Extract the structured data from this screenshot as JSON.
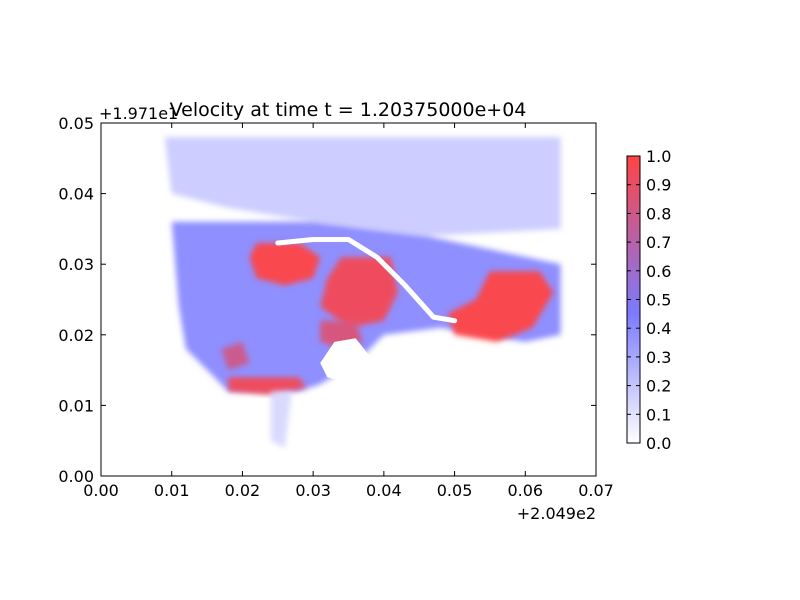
{
  "chart_data": {
    "type": "heatmap",
    "title": "Velocity at time t = 1.20375000e+04",
    "x_offset_label": "+2.049e2",
    "y_offset_label": "+1.971e1",
    "xlim": [
      0.0,
      0.07
    ],
    "ylim": [
      0.0,
      0.05
    ],
    "x_ticks": [
      "0.00",
      "0.01",
      "0.02",
      "0.03",
      "0.04",
      "0.05",
      "0.06",
      "0.07"
    ],
    "y_ticks": [
      "0.00",
      "0.01",
      "0.02",
      "0.03",
      "0.04",
      "0.05"
    ],
    "colorbar": {
      "range": [
        0.0,
        1.0
      ],
      "ticks": [
        "0.0",
        "0.1",
        "0.2",
        "0.3",
        "0.4",
        "0.5",
        "0.6",
        "0.7",
        "0.8",
        "0.9",
        "1.0"
      ],
      "colormap": [
        "#ffffff",
        "#7b7bff",
        "#ff4444"
      ]
    },
    "field_extent": {
      "x": [
        0.008,
        0.065
      ],
      "y": [
        0.004,
        0.048
      ]
    },
    "regions": [
      {
        "label": "upper-domain",
        "value": 0.2,
        "polygon": [
          [
            0.009,
            0.048
          ],
          [
            0.065,
            0.048
          ],
          [
            0.065,
            0.035
          ],
          [
            0.046,
            0.034
          ],
          [
            0.03,
            0.036
          ],
          [
            0.018,
            0.038
          ],
          [
            0.01,
            0.04
          ]
        ]
      },
      {
        "label": "main-current",
        "value": 0.45,
        "polygon": [
          [
            0.01,
            0.036
          ],
          [
            0.03,
            0.036
          ],
          [
            0.046,
            0.034
          ],
          [
            0.065,
            0.03
          ],
          [
            0.065,
            0.02
          ],
          [
            0.06,
            0.019
          ],
          [
            0.048,
            0.021
          ],
          [
            0.04,
            0.02
          ],
          [
            0.036,
            0.016
          ],
          [
            0.031,
            0.013
          ],
          [
            0.028,
            0.012
          ],
          [
            0.018,
            0.012
          ],
          [
            0.012,
            0.018
          ],
          [
            0.011,
            0.024
          ]
        ]
      },
      {
        "label": "fast-zone-center",
        "value": 1.0,
        "polygon": [
          [
            0.022,
            0.033
          ],
          [
            0.028,
            0.033
          ],
          [
            0.031,
            0.031
          ],
          [
            0.03,
            0.028
          ],
          [
            0.026,
            0.027
          ],
          [
            0.022,
            0.028
          ],
          [
            0.021,
            0.031
          ]
        ]
      },
      {
        "label": "fast-zone-mid",
        "value": 0.95,
        "polygon": [
          [
            0.034,
            0.031
          ],
          [
            0.041,
            0.031
          ],
          [
            0.042,
            0.026
          ],
          [
            0.04,
            0.022
          ],
          [
            0.035,
            0.021
          ],
          [
            0.031,
            0.024
          ],
          [
            0.032,
            0.028
          ]
        ]
      },
      {
        "label": "fast-zone-east",
        "value": 1.0,
        "polygon": [
          [
            0.055,
            0.029
          ],
          [
            0.062,
            0.029
          ],
          [
            0.064,
            0.026
          ],
          [
            0.061,
            0.021
          ],
          [
            0.056,
            0.019
          ],
          [
            0.05,
            0.02
          ],
          [
            0.049,
            0.023
          ],
          [
            0.053,
            0.025
          ]
        ]
      },
      {
        "label": "fast-zone-bay-south",
        "value": 0.95,
        "polygon": [
          [
            0.018,
            0.014
          ],
          [
            0.028,
            0.014
          ],
          [
            0.029,
            0.0125
          ],
          [
            0.024,
            0.0115
          ],
          [
            0.018,
            0.012
          ]
        ]
      },
      {
        "label": "fast-zone-west",
        "value": 0.8,
        "polygon": [
          [
            0.017,
            0.018
          ],
          [
            0.02,
            0.019
          ],
          [
            0.021,
            0.016
          ],
          [
            0.018,
            0.015
          ]
        ]
      },
      {
        "label": "fast-zone-south-center",
        "value": 0.85,
        "polygon": [
          [
            0.031,
            0.022
          ],
          [
            0.036,
            0.022
          ],
          [
            0.037,
            0.019
          ],
          [
            0.034,
            0.018
          ],
          [
            0.031,
            0.019
          ]
        ]
      },
      {
        "label": "tail",
        "value": 0.15,
        "polygon": [
          [
            0.024,
            0.012
          ],
          [
            0.027,
            0.012
          ],
          [
            0.026,
            0.004
          ],
          [
            0.024,
            0.005
          ]
        ]
      }
    ],
    "island": {
      "label": "inner-island",
      "value": 0.0,
      "polygon": [
        [
          0.031,
          0.016
        ],
        [
          0.033,
          0.019
        ],
        [
          0.036,
          0.0195
        ],
        [
          0.038,
          0.017
        ],
        [
          0.037,
          0.014
        ],
        [
          0.034,
          0.0135
        ],
        [
          0.032,
          0.014
        ]
      ]
    },
    "channel": {
      "label": "dry-channel",
      "points": [
        [
          0.025,
          0.033
        ],
        [
          0.03,
          0.0335
        ],
        [
          0.035,
          0.0335
        ],
        [
          0.039,
          0.031
        ],
        [
          0.043,
          0.027
        ],
        [
          0.047,
          0.0225
        ],
        [
          0.05,
          0.022
        ]
      ]
    }
  }
}
